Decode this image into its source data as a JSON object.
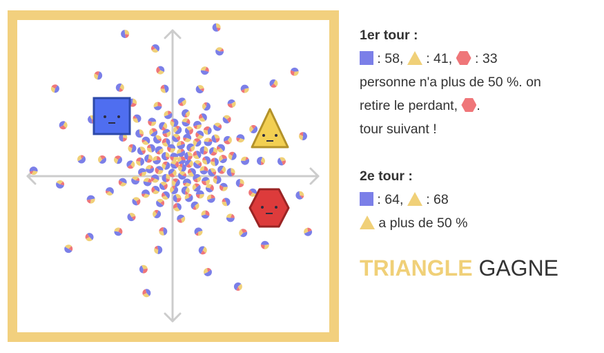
{
  "colors": {
    "frame": "#f2d07e",
    "square": "#7b7fe8",
    "triangle": "#f0d078",
    "hexagon": "#ef7679",
    "axis": "#cccccc"
  },
  "candidates": [
    {
      "name": "square",
      "icon": "square-icon",
      "fill": "#4f6ef0",
      "stroke": "#2c49a8"
    },
    {
      "name": "triangle",
      "icon": "triangle-icon",
      "fill": "#f2cf52",
      "stroke": "#b3922a"
    },
    {
      "name": "hexagon",
      "icon": "hexagon-icon",
      "fill": "#dd3b3b",
      "stroke": "#9a2424"
    }
  ],
  "round1": {
    "title": "1er tour :",
    "square_score": ": 58,",
    "triangle_score": ": 41,",
    "hexagon_score": ": 33",
    "line1": "personne n'a plus de 50 %. on",
    "line2_prefix": "retire le perdant,",
    "line2_suffix": ".",
    "line3": "tour suivant !"
  },
  "round2": {
    "title": "2e tour :",
    "square_score": ": 64,",
    "triangle_score": ": 68",
    "majority_text": "a plus de 50 %"
  },
  "verdict": {
    "winner": "TRIANGLE",
    "result": "GAGNE"
  }
}
